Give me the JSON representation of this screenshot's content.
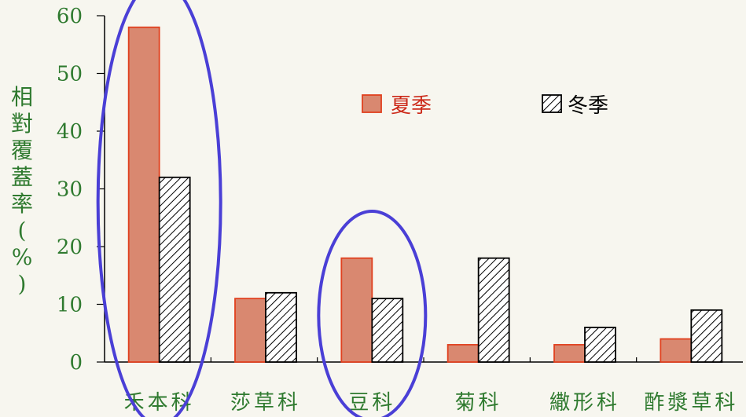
{
  "chart_data": {
    "type": "bar",
    "categories": [
      "禾本科",
      "莎草科",
      "豆科",
      "菊科",
      "繖形科",
      "酢漿草科"
    ],
    "series": [
      {
        "name": "夏季",
        "values": [
          58,
          11,
          18,
          3,
          3,
          4
        ],
        "color": "#d98870",
        "stroke": "#e0401e",
        "pattern": "solid"
      },
      {
        "name": "冬季",
        "values": [
          32,
          12,
          11,
          18,
          6,
          9
        ],
        "color": "#ffffff",
        "stroke": "#000000",
        "pattern": "hatched"
      }
    ],
    "ylabel": "相對覆蓋率(%)",
    "ylim": [
      0,
      60
    ],
    "yticks": [
      0,
      10,
      20,
      30,
      40,
      50,
      60
    ],
    "grid": false,
    "legend_position": "top-right",
    "annotations": [
      {
        "type": "ellipse",
        "encloses_category": "禾本科",
        "color": "#4a3fd6"
      },
      {
        "type": "ellipse",
        "encloses_category": "豆科",
        "color": "#4a3fd6"
      }
    ],
    "colors": {
      "text": "#2f7a2f",
      "axis": "#000000",
      "legend_summer_text": "#cc2a1a",
      "legend_winter_text": "#000000"
    }
  }
}
